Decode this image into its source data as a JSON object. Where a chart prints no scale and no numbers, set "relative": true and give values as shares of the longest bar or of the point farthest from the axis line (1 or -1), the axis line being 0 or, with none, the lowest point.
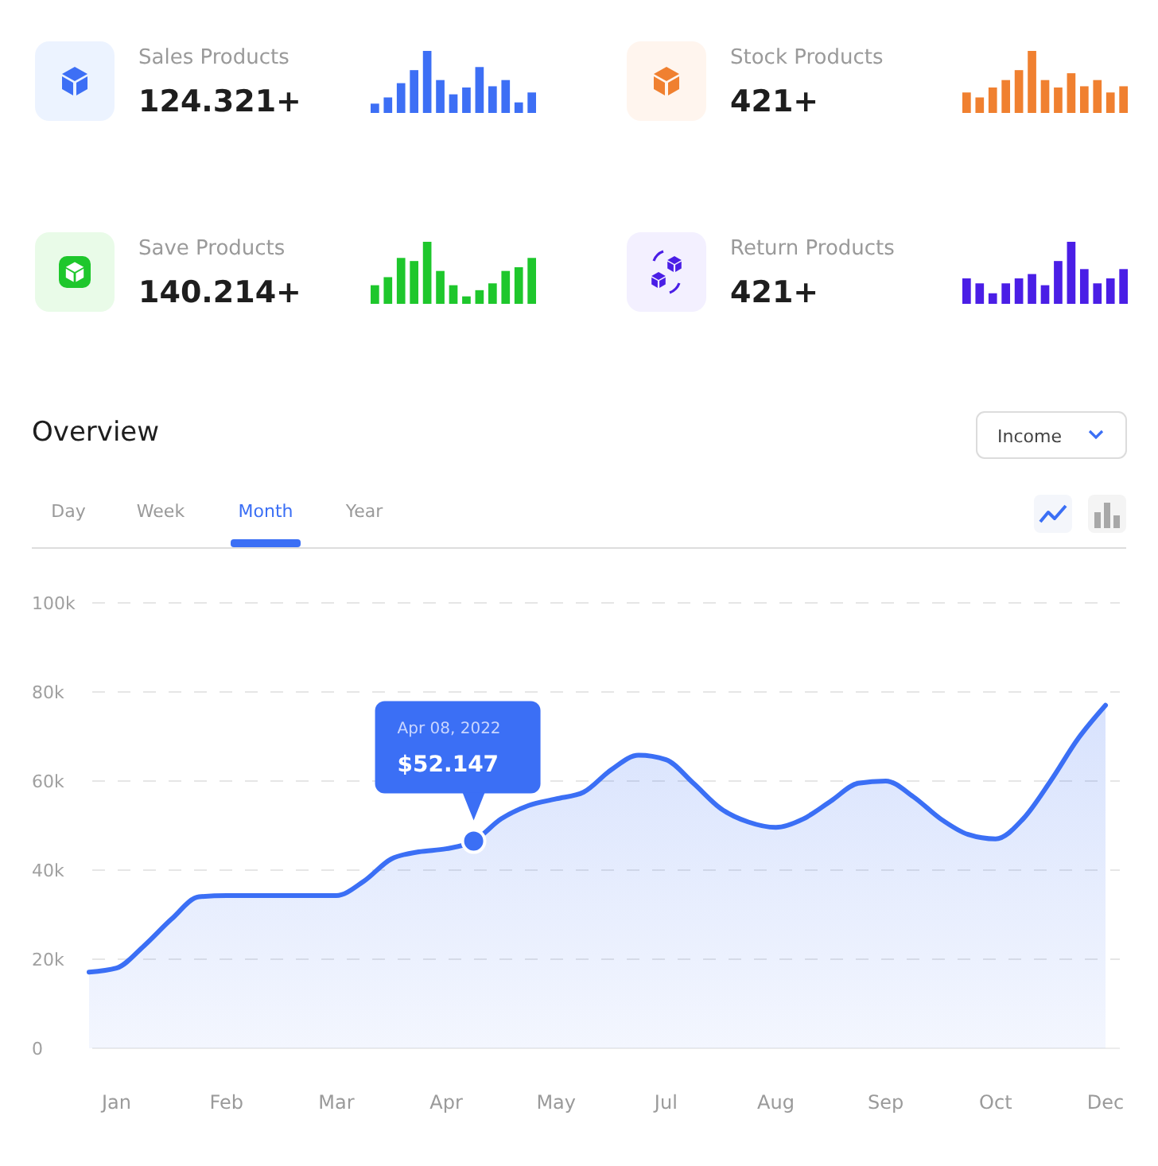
{
  "chart_data": [
    {
      "type": "bar",
      "title": "Sales Products",
      "subtitle": "124.321+",
      "relative": true,
      "color": "#3d6ff5",
      "categories": [
        null,
        null,
        null,
        null,
        null,
        null,
        null,
        null,
        null,
        null,
        null,
        null,
        null
      ],
      "values": [
        0.15,
        0.25,
        0.48,
        0.69,
        1,
        0.53,
        0.3,
        0.41,
        0.74,
        0.43,
        0.53,
        0.17,
        0.33
      ]
    },
    {
      "type": "bar",
      "title": "Stock Products",
      "subtitle": "421+",
      "relative": true,
      "color": "#f08030",
      "categories": [
        null,
        null,
        null,
        null,
        null,
        null,
        null,
        null,
        null,
        null,
        null,
        null,
        null
      ],
      "values": [
        0.33,
        0.25,
        0.41,
        0.53,
        0.69,
        1,
        0.53,
        0.41,
        0.64,
        0.43,
        0.53,
        0.33,
        0.43
      ]
    },
    {
      "type": "bar",
      "title": "Save Products",
      "subtitle": "140.214+",
      "relative": true,
      "color": "#1ec72c",
      "categories": [
        null,
        null,
        null,
        null,
        null,
        null,
        null,
        null,
        null,
        null,
        null,
        null,
        null
      ],
      "values": [
        0.3,
        0.43,
        0.74,
        0.69,
        1,
        0.53,
        0.3,
        0.12,
        0.22,
        0.33,
        0.53,
        0.59,
        0.74
      ]
    },
    {
      "type": "bar",
      "title": "Return Products",
      "subtitle": "421+",
      "relative": true,
      "color": "#4a1ee6",
      "categories": [
        null,
        null,
        null,
        null,
        null,
        null,
        null,
        null,
        null,
        null,
        null,
        null,
        null
      ],
      "values": [
        0.41,
        0.33,
        0.17,
        0.33,
        0.41,
        0.48,
        0.3,
        0.69,
        1,
        0.56,
        0.33,
        0.41,
        0.56
      ]
    },
    {
      "type": "area",
      "title": "Overview",
      "grid": "y",
      "categories": [
        null,
        "Jan",
        null,
        null,
        null,
        "Feb",
        null,
        null,
        null,
        "Mar",
        null,
        null,
        null,
        "Apr",
        null,
        null,
        null,
        "May",
        null,
        null,
        null,
        "Jul",
        null,
        null,
        null,
        "Aug",
        null,
        null,
        null,
        "Sep",
        null,
        null,
        null,
        "Oct",
        null,
        null,
        null,
        "Dec"
      ],
      "ylim": [
        0,
        100000
      ],
      "yticks": [
        {
          "value": 0,
          "label": "0"
        },
        {
          "value": 20000,
          "label": "20k"
        },
        {
          "value": 40000,
          "label": "40k"
        },
        {
          "value": 60000,
          "label": "60k"
        },
        {
          "value": 80000,
          "label": "80k"
        },
        {
          "value": 100000,
          "label": "100k"
        }
      ],
      "series": [
        {
          "type": "area",
          "color": "#3b6ff5",
          "values": [
            17100,
            18000,
            23000,
            29000,
            34000,
            34300,
            34300,
            34300,
            34300,
            34300,
            37500,
            42500,
            44100,
            44800,
            46500,
            51500,
            54500,
            56000,
            57500,
            62500,
            65800,
            64800,
            59500,
            53800,
            50800,
            49600,
            51500,
            55500,
            59500,
            60000,
            56500,
            51500,
            48000,
            47000,
            51500,
            60000,
            69500,
            77000
          ]
        },
        {
          "type": "scatter",
          "color": "#3b6ff5",
          "marker": "circle",
          "values": [
            null,
            null,
            null,
            null,
            null,
            null,
            null,
            null,
            null,
            null,
            null,
            null,
            null,
            null,
            46500,
            null,
            null,
            null,
            null,
            null,
            null,
            null,
            null,
            null,
            null,
            null,
            null,
            null,
            null,
            null,
            null,
            null,
            null,
            null,
            null,
            null,
            null,
            null
          ]
        }
      ],
      "annotations": [
        "Apr 08, 2022",
        "$52.147",
        "Income",
        "Day",
        "Week",
        "Month",
        "Year"
      ]
    }
  ]
}
